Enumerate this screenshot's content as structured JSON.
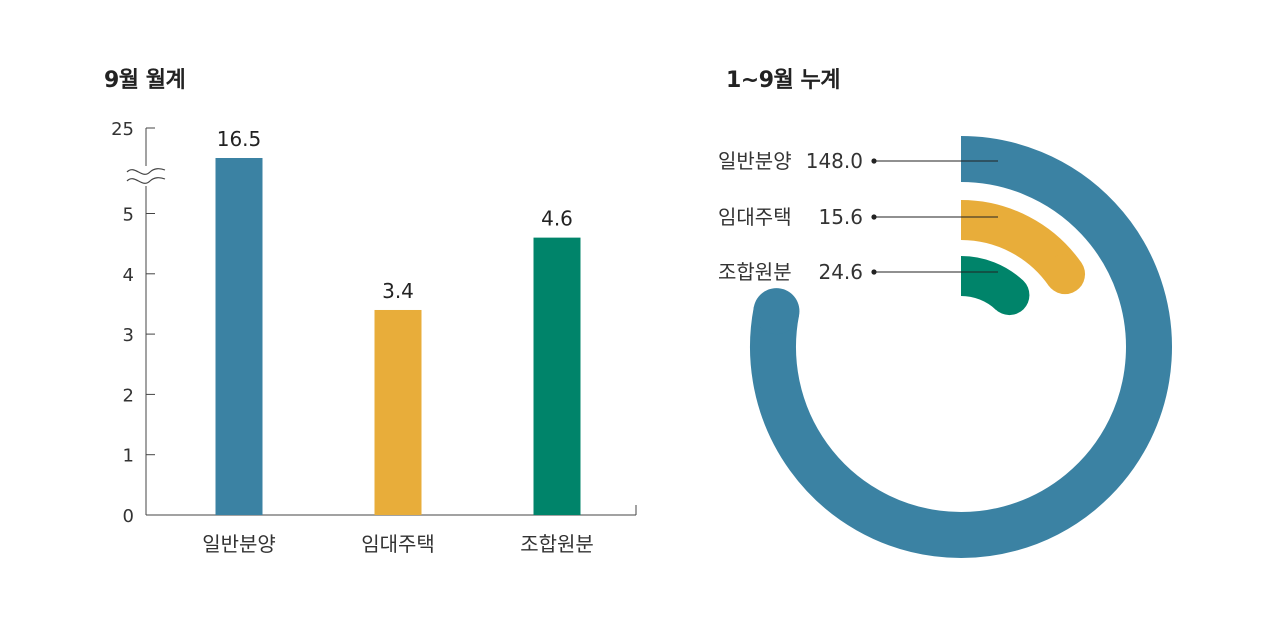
{
  "chart_data": [
    {
      "type": "bar",
      "title": "9월 월계",
      "categories": [
        "일반분양",
        "임대주택",
        "조합원분"
      ],
      "values": [
        16.5,
        3.4,
        4.6
      ],
      "value_labels": [
        "16.5",
        "3.4",
        "4.6"
      ],
      "yticks": [
        "0",
        "1",
        "2",
        "3",
        "4",
        "5",
        "25"
      ],
      "ylim": [
        0,
        25
      ],
      "axis_break": "between 5 and 25",
      "colors": [
        "#3b82a3",
        "#e8ad3a",
        "#00846a"
      ],
      "grid": false
    },
    {
      "type": "pie",
      "subtype": "radial-bar",
      "title": "1~9월 누계",
      "categories": [
        "일반분양",
        "임대주택",
        "조합원분"
      ],
      "values": [
        148.0,
        15.6,
        24.6
      ],
      "value_labels": [
        "148.0",
        "15.6",
        "24.6"
      ],
      "colors": [
        "#3b82a3",
        "#e8ad3a",
        "#00846a"
      ]
    }
  ]
}
